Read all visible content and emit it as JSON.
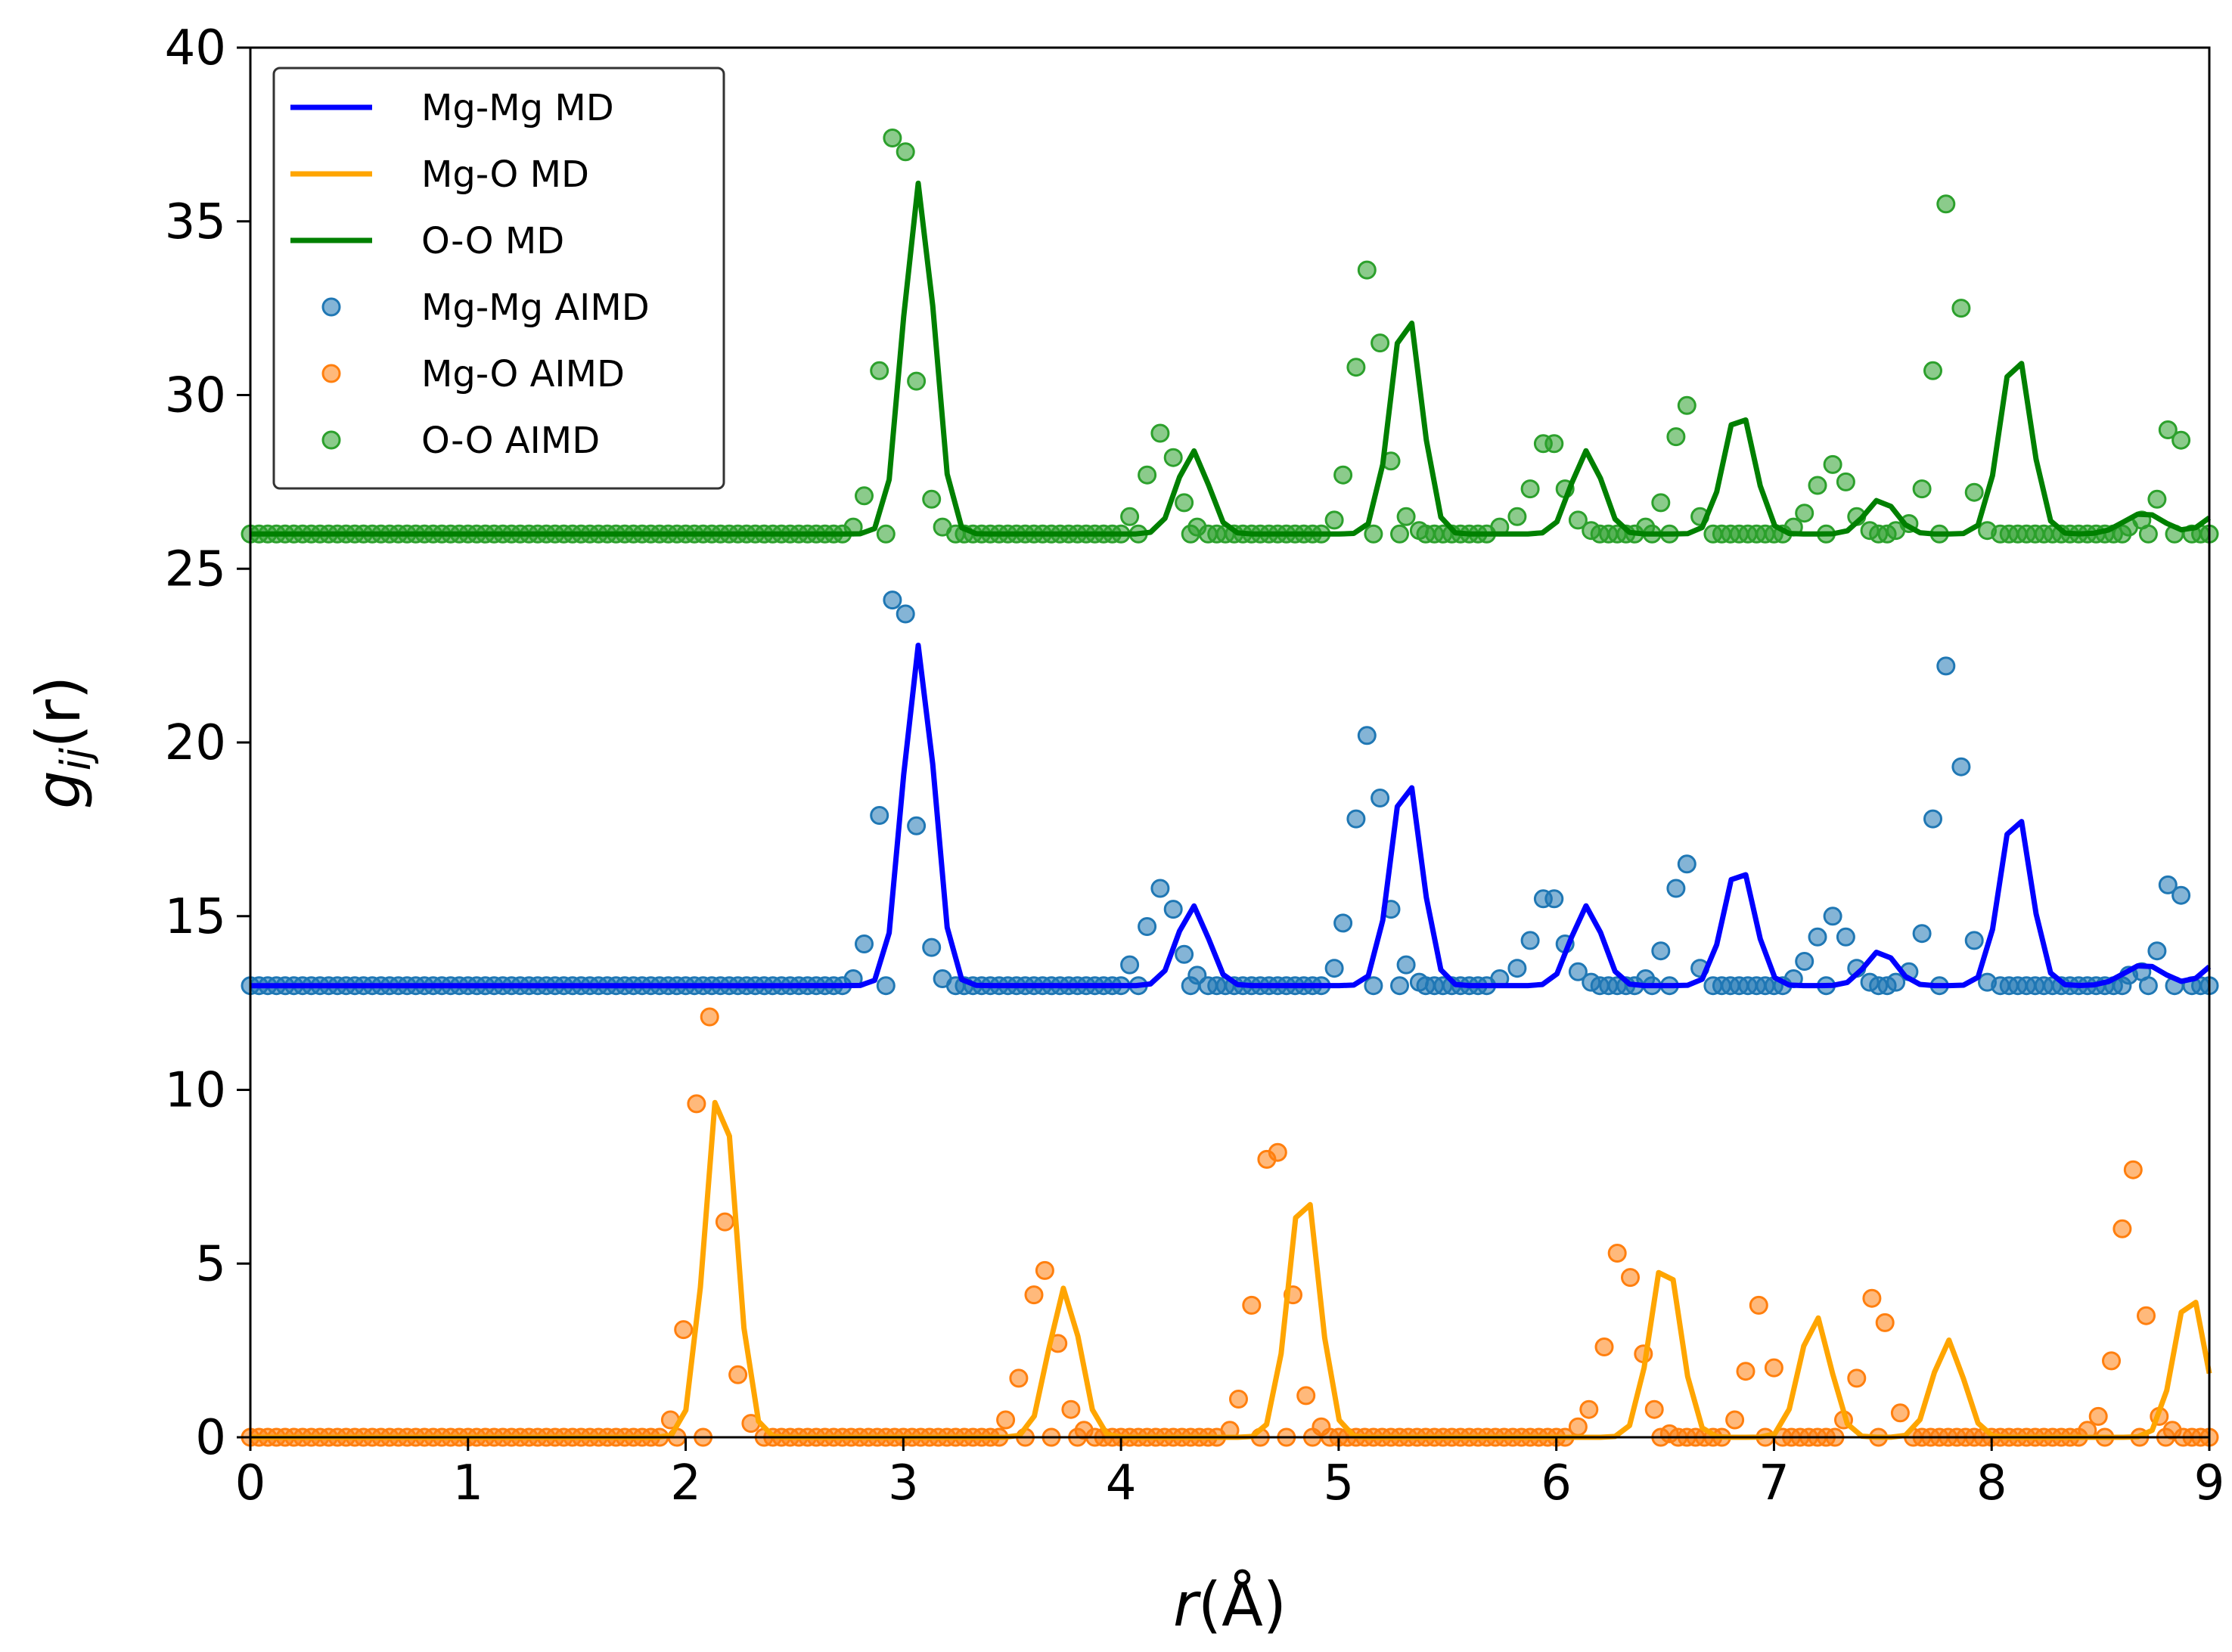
{
  "chart_data": {
    "type": "line",
    "title": "",
    "xlabel_italic": "r",
    "xlabel_unit": "(Å)",
    "ylabel_main": "g",
    "ylabel_sub": "ij",
    "ylabel_arg": "(r)",
    "xlim": [
      0,
      9
    ],
    "ylim": [
      0,
      40
    ],
    "xticks": [
      0,
      1,
      2,
      3,
      4,
      5,
      6,
      7,
      8,
      9
    ],
    "yticks": [
      0,
      5,
      10,
      15,
      20,
      25,
      30,
      35,
      40
    ],
    "xtick_labels": [
      "0",
      "1",
      "2",
      "3",
      "4",
      "5",
      "6",
      "7",
      "8",
      "9"
    ],
    "ytick_labels": [
      "0",
      "5",
      "10",
      "15",
      "20",
      "25",
      "30",
      "35",
      "40"
    ],
    "grid": false,
    "legend_position": "top-left",
    "line_step": 0.0667,
    "scatter_step": 0.04,
    "series": [
      {
        "name": "Mg-Mg MD",
        "kind": "line",
        "color": "#0000ff",
        "offset": 13,
        "peaks": [
          [
            3.07,
            9.8,
            0.07
          ],
          [
            4.33,
            2.3,
            0.07
          ],
          [
            5.31,
            6.1,
            0.07
          ],
          [
            6.14,
            2.3,
            0.07
          ],
          [
            6.84,
            3.5,
            0.07
          ],
          [
            7.49,
            1.0,
            0.07
          ],
          [
            8.11,
            5.1,
            0.07
          ],
          [
            8.7,
            0.6,
            0.09
          ],
          [
            9.05,
            0.7,
            0.07
          ]
        ],
        "points": []
      },
      {
        "name": "Mg-O MD",
        "kind": "line",
        "color": "#ffa500",
        "offset": 0,
        "peaks": [
          [
            2.16,
            10.3,
            0.07
          ],
          [
            3.74,
            4.3,
            0.07
          ],
          [
            4.84,
            7.3,
            0.07
          ],
          [
            6.5,
            5.2,
            0.07
          ],
          [
            7.19,
            3.5,
            0.07
          ],
          [
            7.8,
            2.8,
            0.07
          ],
          [
            8.91,
            4.2,
            0.07
          ]
        ],
        "points": []
      },
      {
        "name": "O-O MD",
        "kind": "line",
        "color": "#008000",
        "offset": 26,
        "peaks": [
          [
            3.07,
            10.1,
            0.07
          ],
          [
            4.33,
            2.4,
            0.07
          ],
          [
            5.31,
            6.5,
            0.07
          ],
          [
            6.14,
            2.4,
            0.07
          ],
          [
            6.84,
            3.6,
            0.07
          ],
          [
            7.49,
            1.0,
            0.07
          ],
          [
            8.11,
            5.3,
            0.07
          ],
          [
            8.7,
            0.6,
            0.09
          ],
          [
            9.05,
            0.6,
            0.07
          ]
        ],
        "points": []
      },
      {
        "name": "Mg-Mg AIMD",
        "kind": "scatter",
        "color": "#1f77b4",
        "offset": 13,
        "points": [
          [
            2.77,
            13.2
          ],
          [
            2.82,
            14.2
          ],
          [
            2.89,
            17.9
          ],
          [
            2.95,
            24.1
          ],
          [
            3.01,
            23.7
          ],
          [
            3.06,
            17.6
          ],
          [
            3.13,
            14.1
          ],
          [
            3.18,
            13.2
          ],
          [
            4.04,
            13.6
          ],
          [
            4.12,
            14.7
          ],
          [
            4.18,
            15.8
          ],
          [
            4.24,
            15.2
          ],
          [
            4.29,
            13.9
          ],
          [
            4.35,
            13.3
          ],
          [
            4.98,
            13.5
          ],
          [
            5.02,
            14.8
          ],
          [
            5.08,
            17.8
          ],
          [
            5.13,
            20.2
          ],
          [
            5.19,
            18.4
          ],
          [
            5.24,
            15.2
          ],
          [
            5.31,
            13.6
          ],
          [
            5.37,
            13.1
          ],
          [
            5.74,
            13.2
          ],
          [
            5.82,
            13.5
          ],
          [
            5.88,
            14.3
          ],
          [
            5.94,
            15.5
          ],
          [
            5.99,
            15.5
          ],
          [
            6.04,
            14.2
          ],
          [
            6.1,
            13.4
          ],
          [
            6.16,
            13.1
          ],
          [
            6.41,
            13.2
          ],
          [
            6.48,
            14.0
          ],
          [
            6.55,
            15.8
          ],
          [
            6.6,
            16.5
          ],
          [
            6.66,
            13.5
          ],
          [
            7.09,
            13.2
          ],
          [
            7.14,
            13.7
          ],
          [
            7.2,
            14.4
          ],
          [
            7.27,
            15.0
          ],
          [
            7.33,
            14.4
          ],
          [
            7.38,
            13.5
          ],
          [
            7.44,
            13.1
          ],
          [
            7.56,
            13.1
          ],
          [
            7.62,
            13.4
          ],
          [
            7.68,
            14.5
          ],
          [
            7.73,
            17.8
          ],
          [
            7.79,
            22.2
          ],
          [
            7.86,
            19.3
          ],
          [
            7.92,
            14.3
          ],
          [
            7.98,
            13.1
          ],
          [
            8.63,
            13.3
          ],
          [
            8.69,
            13.4
          ],
          [
            8.76,
            14.0
          ],
          [
            8.81,
            15.9
          ],
          [
            8.87,
            15.6
          ]
        ]
      },
      {
        "name": "Mg-O AIMD",
        "kind": "scatter",
        "color": "#ff7f0e",
        "offset": 0,
        "points": [
          [
            1.93,
            0.5
          ],
          [
            1.99,
            3.1
          ],
          [
            2.05,
            9.6
          ],
          [
            2.11,
            12.1
          ],
          [
            2.18,
            6.2
          ],
          [
            2.24,
            1.8
          ],
          [
            2.3,
            0.4
          ],
          [
            3.47,
            0.5
          ],
          [
            3.53,
            1.7
          ],
          [
            3.6,
            4.1
          ],
          [
            3.65,
            4.8
          ],
          [
            3.71,
            2.7
          ],
          [
            3.77,
            0.8
          ],
          [
            3.83,
            0.2
          ],
          [
            4.5,
            0.2
          ],
          [
            4.54,
            1.1
          ],
          [
            4.6,
            3.8
          ],
          [
            4.67,
            8.0
          ],
          [
            4.72,
            8.2
          ],
          [
            4.79,
            4.1
          ],
          [
            4.85,
            1.2
          ],
          [
            4.92,
            0.3
          ],
          [
            6.1,
            0.3
          ],
          [
            6.15,
            0.8
          ],
          [
            6.22,
            2.6
          ],
          [
            6.28,
            5.3
          ],
          [
            6.34,
            4.6
          ],
          [
            6.4,
            2.4
          ],
          [
            6.45,
            0.8
          ],
          [
            6.52,
            0.1
          ],
          [
            6.82,
            0.5
          ],
          [
            6.87,
            1.9
          ],
          [
            6.93,
            3.8
          ],
          [
            7.0,
            2.0
          ],
          [
            7.32,
            0.5
          ],
          [
            7.38,
            1.7
          ],
          [
            7.45,
            4.0
          ],
          [
            7.51,
            3.3
          ],
          [
            7.58,
            0.7
          ],
          [
            8.44,
            0.2
          ],
          [
            8.49,
            0.6
          ],
          [
            8.55,
            2.2
          ],
          [
            8.6,
            6.0
          ],
          [
            8.65,
            7.7
          ],
          [
            8.71,
            3.5
          ],
          [
            8.77,
            0.6
          ],
          [
            8.83,
            0.2
          ]
        ]
      },
      {
        "name": "O-O AIMD",
        "kind": "scatter",
        "color": "#2ca02c",
        "offset": 26,
        "points": [
          [
            2.77,
            26.2
          ],
          [
            2.82,
            27.1
          ],
          [
            2.89,
            30.7
          ],
          [
            2.95,
            37.4
          ],
          [
            3.01,
            37.0
          ],
          [
            3.06,
            30.4
          ],
          [
            3.13,
            27.0
          ],
          [
            3.18,
            26.2
          ],
          [
            4.04,
            26.5
          ],
          [
            4.12,
            27.7
          ],
          [
            4.18,
            28.9
          ],
          [
            4.24,
            28.2
          ],
          [
            4.29,
            26.9
          ],
          [
            4.35,
            26.2
          ],
          [
            4.98,
            26.4
          ],
          [
            5.02,
            27.7
          ],
          [
            5.08,
            30.8
          ],
          [
            5.13,
            33.6
          ],
          [
            5.19,
            31.5
          ],
          [
            5.24,
            28.1
          ],
          [
            5.31,
            26.5
          ],
          [
            5.37,
            26.1
          ],
          [
            5.74,
            26.2
          ],
          [
            5.82,
            26.5
          ],
          [
            5.88,
            27.3
          ],
          [
            5.94,
            28.6
          ],
          [
            5.99,
            28.6
          ],
          [
            6.04,
            27.3
          ],
          [
            6.1,
            26.4
          ],
          [
            6.16,
            26.1
          ],
          [
            6.41,
            26.2
          ],
          [
            6.48,
            26.9
          ],
          [
            6.55,
            28.8
          ],
          [
            6.6,
            29.7
          ],
          [
            6.66,
            26.5
          ],
          [
            7.09,
            26.2
          ],
          [
            7.14,
            26.6
          ],
          [
            7.2,
            27.4
          ],
          [
            7.27,
            28.0
          ],
          [
            7.33,
            27.5
          ],
          [
            7.38,
            26.5
          ],
          [
            7.44,
            26.1
          ],
          [
            7.56,
            26.1
          ],
          [
            7.62,
            26.3
          ],
          [
            7.68,
            27.3
          ],
          [
            7.73,
            30.7
          ],
          [
            7.79,
            35.5
          ],
          [
            7.86,
            32.5
          ],
          [
            7.92,
            27.2
          ],
          [
            7.98,
            26.1
          ],
          [
            8.63,
            26.2
          ],
          [
            8.69,
            26.4
          ],
          [
            8.76,
            27.0
          ],
          [
            8.81,
            29.0
          ],
          [
            8.87,
            28.7
          ]
        ]
      }
    ]
  }
}
